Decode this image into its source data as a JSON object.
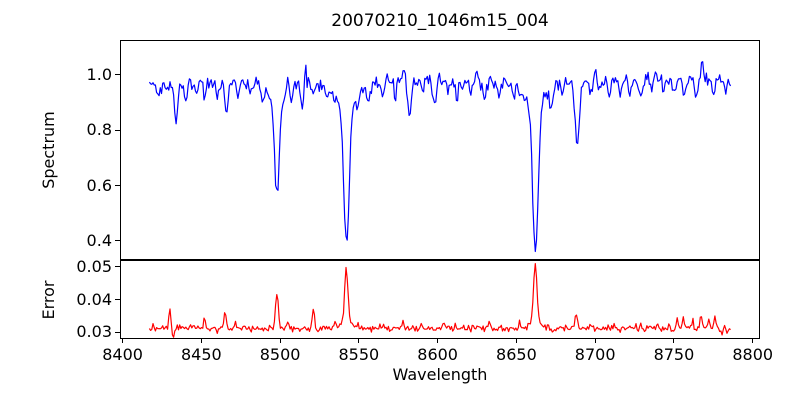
{
  "figure": {
    "background_color": "#ffffff",
    "axes_color": "#000000",
    "text_color": "#000000"
  },
  "chart_data": {
    "type": "line",
    "title": "20070210_1046m15_004",
    "xlabel": "Wavelength",
    "legend": "none",
    "grid": false,
    "x_axis": {
      "range": [
        8399,
        8804
      ],
      "ticks": [
        8400,
        8450,
        8500,
        8550,
        8600,
        8650,
        8700,
        8750,
        8800
      ],
      "tick_labels": [
        "8400",
        "8450",
        "8500",
        "8550",
        "8600",
        "8650",
        "8700",
        "8750",
        "8800"
      ]
    },
    "series_x_start": 8417,
    "series_x_end": 8786,
    "n_points": 480,
    "noise_seed": 20070210,
    "features_format": "[center_wavelength, amplitude, gaussian_sigma]; positive amplitude is the panel feature direction (absorption dip for Spectrum, spike for Error), negative is the opposite direction",
    "panels": [
      {
        "name": "Spectrum",
        "ylabel": "Spectrum",
        "line_color": "#0000ff",
        "ylim": [
          0.335,
          1.122
        ],
        "yticks": [
          0.4,
          0.6,
          0.8,
          1.0
        ],
        "ytick_labels": [
          "0.4",
          "0.6",
          "0.8",
          "1.0"
        ],
        "continuum_level": 0.975,
        "continuum_slope_per_angstrom": 3e-05,
        "noise_sigma": 0.012,
        "feature_direction": -1,
        "features": [
          [
            8423,
            0.05,
            0.9
          ],
          [
            8428,
            0.04,
            0.8
          ],
          [
            8434,
            0.14,
            1.0
          ],
          [
            8440,
            0.06,
            0.9
          ],
          [
            8447,
            0.05,
            0.8
          ],
          [
            8452,
            0.04,
            0.8
          ],
          [
            8460,
            0.05,
            0.9
          ],
          [
            8466,
            0.12,
            1.0
          ],
          [
            8473,
            0.05,
            0.8
          ],
          [
            8481,
            0.04,
            0.8
          ],
          [
            8489,
            0.06,
            0.9
          ],
          [
            8498,
            0.33,
            1.5
          ],
          [
            8498,
            0.07,
            5
          ],
          [
            8505,
            -0.05,
            0.6
          ],
          [
            8507,
            0.05,
            0.8
          ],
          [
            8514,
            0.09,
            0.9
          ],
          [
            8516,
            -0.06,
            0.6
          ],
          [
            8521,
            0.05,
            0.8
          ],
          [
            8530,
            0.05,
            0.8
          ],
          [
            8542.1,
            0.5,
            1.7
          ],
          [
            8542.1,
            0.085,
            7
          ],
          [
            8549,
            0.05,
            0.8
          ],
          [
            8556,
            0.07,
            0.9
          ],
          [
            8565,
            0.05,
            0.8
          ],
          [
            8573,
            0.06,
            0.9
          ],
          [
            8579,
            -0.05,
            0.6
          ],
          [
            8582,
            0.14,
            1.0
          ],
          [
            8590,
            0.05,
            0.8
          ],
          [
            8598,
            0.08,
            0.9
          ],
          [
            8607,
            0.05,
            0.8
          ],
          [
            8612,
            0.07,
            0.8
          ],
          [
            8621,
            0.05,
            0.8
          ],
          [
            8625,
            -0.05,
            0.6
          ],
          [
            8630,
            0.07,
            0.9
          ],
          [
            8639,
            0.05,
            0.8
          ],
          [
            8648,
            0.04,
            0.8
          ],
          [
            8662.1,
            0.52,
            1.7
          ],
          [
            8662.1,
            0.09,
            7
          ],
          [
            8672,
            0.06,
            0.9
          ],
          [
            8679,
            0.05,
            0.8
          ],
          [
            8688.6,
            0.21,
            1.3
          ],
          [
            8688.6,
            0.02,
            4
          ],
          [
            8697,
            0.05,
            0.8
          ],
          [
            8700,
            -0.04,
            0.6
          ],
          [
            8703,
            0.04,
            0.8
          ],
          [
            8709,
            0.06,
            0.9
          ],
          [
            8716,
            0.04,
            0.8
          ],
          [
            8722,
            0.05,
            0.8
          ],
          [
            8729,
            0.06,
            0.9
          ],
          [
            8736,
            0.04,
            0.8
          ],
          [
            8742,
            -0.04,
            0.6
          ],
          [
            8743,
            0.05,
            0.8
          ],
          [
            8750,
            0.04,
            0.8
          ],
          [
            8757,
            0.05,
            0.8
          ],
          [
            8764,
            0.06,
            0.9
          ],
          [
            8768,
            -0.085,
            0.7
          ],
          [
            8775,
            0.05,
            0.8
          ],
          [
            8783,
            0.04,
            0.8
          ]
        ]
      },
      {
        "name": "Error",
        "ylabel": "Error",
        "line_color": "#ff0000",
        "ylim": [
          0.0282,
          0.0518
        ],
        "yticks": [
          0.03,
          0.04,
          0.05
        ],
        "ytick_labels": [
          "0.03",
          "0.04",
          "0.05"
        ],
        "continuum_level": 0.0312,
        "continuum_slope_per_angstrom": 0,
        "noise_sigma": 0.0005,
        "feature_direction": 1,
        "features": [
          [
            8430,
            0.0063,
            0.6
          ],
          [
            8432,
            -0.0022,
            0.8
          ],
          [
            8443,
            0.0012,
            0.5
          ],
          [
            8452,
            0.0032,
            0.6
          ],
          [
            8465,
            0.0055,
            0.7
          ],
          [
            8472,
            0.0012,
            0.5
          ],
          [
            8483,
            0.001,
            0.5
          ],
          [
            8498,
            0.01,
            0.9
          ],
          [
            8505,
            0.0015,
            0.5
          ],
          [
            8521,
            0.006,
            0.7
          ],
          [
            8524,
            -0.0015,
            0.6
          ],
          [
            8535,
            0.0015,
            0.6
          ],
          [
            8542,
            0.016,
            1.0
          ],
          [
            8542,
            0.0025,
            3
          ],
          [
            8550,
            0.0012,
            0.5
          ],
          [
            8563,
            0.001,
            0.5
          ],
          [
            8578,
            0.0018,
            0.6
          ],
          [
            8590,
            0.0012,
            0.5
          ],
          [
            8604,
            0.002,
            0.6
          ],
          [
            8611,
            0.0015,
            0.5
          ],
          [
            8622,
            0.0012,
            0.5
          ],
          [
            8633,
            0.0022,
            0.6
          ],
          [
            8640,
            0.0012,
            0.5
          ],
          [
            8652,
            0.0015,
            0.5
          ],
          [
            8662,
            0.017,
            1.0
          ],
          [
            8662,
            0.0025,
            3
          ],
          [
            8670,
            0.0015,
            0.5
          ],
          [
            8688,
            0.0048,
            0.8
          ],
          [
            8697,
            0.0012,
            0.5
          ],
          [
            8712,
            0.001,
            0.5
          ],
          [
            8726,
            0.0015,
            0.5
          ],
          [
            8740,
            0.0012,
            0.5
          ],
          [
            8752,
            0.0028,
            0.6
          ],
          [
            8756,
            0.003,
            0.6
          ],
          [
            8762,
            0.002,
            0.6
          ],
          [
            8767,
            0.0042,
            0.7
          ],
          [
            8772,
            0.0025,
            0.6
          ],
          [
            8776,
            0.0042,
            0.7
          ],
          [
            8780,
            -0.0018,
            0.8
          ],
          [
            8784,
            -0.0015,
            0.6
          ]
        ]
      }
    ]
  }
}
